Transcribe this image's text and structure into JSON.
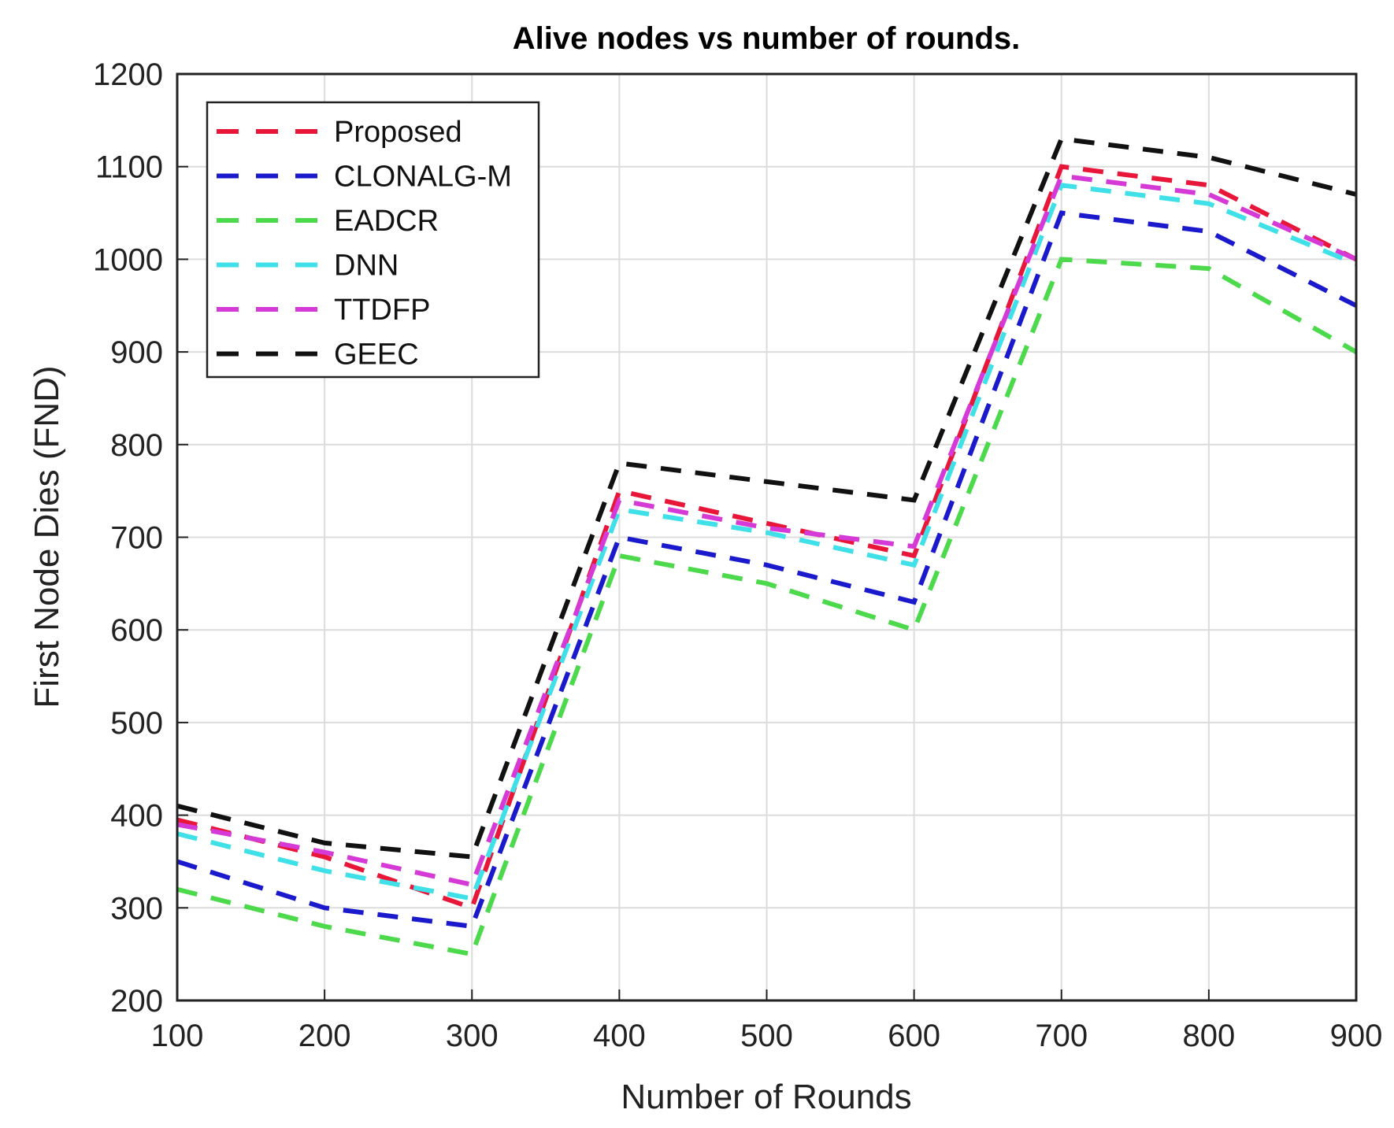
{
  "chart_data": {
    "type": "line",
    "title": "Alive nodes vs number of rounds.",
    "xlabel": "Number of Rounds",
    "ylabel": "First Node Dies (FND)",
    "xlim": [
      100,
      900
    ],
    "ylim": [
      200,
      1200
    ],
    "xticks": [
      100,
      200,
      300,
      400,
      500,
      600,
      700,
      800,
      900
    ],
    "yticks": [
      200,
      300,
      400,
      500,
      600,
      700,
      800,
      900,
      1000,
      1100,
      1200
    ],
    "grid": true,
    "legend_position": "top-left",
    "line_style": "dashed",
    "x": [
      100,
      200,
      300,
      400,
      500,
      600,
      700,
      800,
      900
    ],
    "series": [
      {
        "name": "Proposed",
        "color": "#e8173a",
        "values": [
          395,
          355,
          300,
          750,
          715,
          680,
          1100,
          1080,
          1000
        ]
      },
      {
        "name": "CLONALG-M",
        "color": "#1a1acc",
        "values": [
          350,
          300,
          280,
          700,
          670,
          630,
          1050,
          1030,
          950
        ]
      },
      {
        "name": "EADCR",
        "color": "#4cd94c",
        "values": [
          320,
          280,
          250,
          680,
          650,
          600,
          1000,
          990,
          900
        ]
      },
      {
        "name": "DNN",
        "color": "#3fe0e8",
        "values": [
          380,
          340,
          310,
          730,
          705,
          670,
          1080,
          1060,
          995
        ]
      },
      {
        "name": "TTDFP",
        "color": "#d63ad6",
        "values": [
          390,
          360,
          325,
          740,
          710,
          690,
          1090,
          1070,
          1000
        ]
      },
      {
        "name": "GEEC",
        "color": "#111111",
        "values": [
          410,
          370,
          355,
          780,
          760,
          740,
          1130,
          1110,
          1070
        ]
      }
    ]
  }
}
